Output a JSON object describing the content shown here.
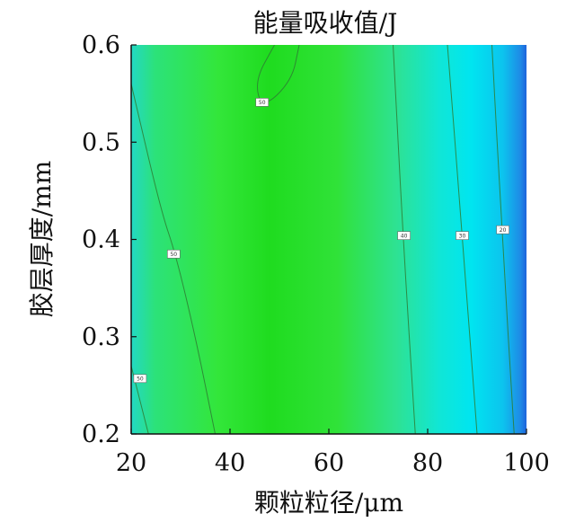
{
  "chart_data": {
    "type": "heatmap",
    "title": "能量吸收值/J",
    "xlabel": "颗粒粒径/μm",
    "ylabel": "胶层厚度/mm",
    "xlim": [
      20,
      100
    ],
    "ylim": [
      0.2,
      0.6
    ],
    "x_ticks": [
      "20",
      "40",
      "60",
      "80",
      "100"
    ],
    "y_ticks": [
      "0.2",
      "0.3",
      "0.4",
      "0.5",
      "0.6"
    ],
    "colors": {
      "low": "#1e64dc",
      "mid": "#00e5f0",
      "high": "#1fdc1f",
      "contour": "#2e7d32"
    },
    "contours": [
      {
        "label": "50",
        "points": [
          [
            49,
            0.6
          ],
          [
            45,
            0.563
          ],
          [
            46.5,
            0.534
          ],
          [
            52.5,
            0.563
          ],
          [
            54,
            0.6
          ]
        ]
      },
      {
        "label": "50",
        "points": [
          [
            20,
            0.56
          ],
          [
            26,
            0.43
          ],
          [
            29,
            0.385
          ],
          [
            33,
            0.3
          ],
          [
            37,
            0.2
          ]
        ]
      },
      {
        "label": "50",
        "points": [
          [
            20,
            0.27
          ],
          [
            23.5,
            0.2
          ]
        ]
      },
      {
        "label": "40",
        "points": [
          [
            73,
            0.6
          ],
          [
            75,
            0.404
          ],
          [
            77.5,
            0.2
          ]
        ]
      },
      {
        "label": "30",
        "points": [
          [
            84,
            0.6
          ],
          [
            87,
            0.404
          ],
          [
            90,
            0.2
          ]
        ]
      },
      {
        "label": "20",
        "points": [
          [
            93,
            0.6
          ],
          [
            95,
            0.41
          ],
          [
            97.5,
            0.2
          ]
        ]
      }
    ],
    "contour_labels": [
      {
        "text": "50",
        "x": 46.5,
        "y": 0.541
      },
      {
        "text": "50",
        "x": 28.6,
        "y": 0.385
      },
      {
        "text": "50",
        "x": 21.8,
        "y": 0.257
      },
      {
        "text": "40",
        "x": 75.2,
        "y": 0.404
      },
      {
        "text": "30",
        "x": 87.0,
        "y": 0.404
      },
      {
        "text": "20",
        "x": 95.2,
        "y": 0.41
      }
    ]
  }
}
